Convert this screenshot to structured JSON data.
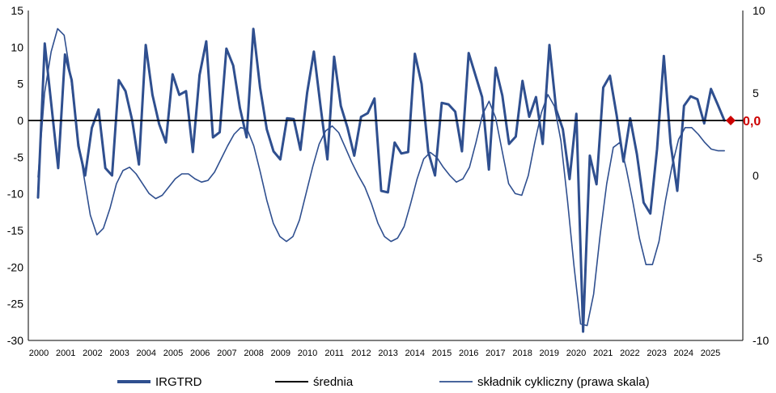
{
  "chart_data": {
    "type": "line",
    "x_labels": [
      "2000",
      "2001",
      "2002",
      "2003",
      "2004",
      "2005",
      "2006",
      "2007",
      "2008",
      "2009",
      "2010",
      "2011",
      "2012",
      "2013",
      "2014",
      "2015",
      "2016",
      "2017",
      "2018",
      "2019",
      "2020",
      "2021",
      "2022",
      "2023",
      "2024",
      "2025"
    ],
    "left_axis": {
      "ylim": [
        -30,
        15
      ],
      "ticks": [
        -30,
        -25,
        -20,
        -15,
        -10,
        -5,
        0,
        5,
        10,
        15
      ]
    },
    "right_axis": {
      "ylim": [
        -10,
        10
      ],
      "ticks": [
        -10,
        -5,
        0,
        5,
        10
      ]
    },
    "grid": false,
    "legend_position": "bottom",
    "series": [
      {
        "name": "IRGTRD",
        "axis": "left",
        "color": "#2F4F8F",
        "style": "thick",
        "values": [
          -10.5,
          10.5,
          2.0,
          -6.5,
          9.0,
          5.5,
          -3.5,
          -7.5,
          -1.0,
          1.5,
          -6.5,
          -7.5,
          5.5,
          4.0,
          0.0,
          -6.0,
          10.3,
          3.5,
          -0.5,
          -3.0,
          6.3,
          3.5,
          4.0,
          -4.3,
          6.2,
          10.8,
          -2.3,
          -1.6,
          9.8,
          7.5,
          1.7,
          -2.3,
          12.5,
          4.5,
          -1.2,
          -4.2,
          -5.3,
          0.3,
          0.2,
          -4.0,
          3.8,
          9.4,
          1.8,
          -5.3,
          8.7,
          2.0,
          -1.0,
          -4.8,
          0.5,
          1.0,
          3.0,
          -9.6,
          -9.8,
          -3.0,
          -4.5,
          -4.3,
          9.1,
          5.0,
          -4.3,
          -7.5,
          2.4,
          2.2,
          1.2,
          -4.2,
          9.2,
          6.2,
          3.2,
          -6.7,
          7.2,
          3.4,
          -3.2,
          -2.2,
          5.4,
          0.5,
          3.2,
          -3.2,
          10.3,
          1.5,
          -1.2,
          -8.0,
          0.9,
          -28.8,
          -4.8,
          -8.7,
          4.5,
          6.1,
          0.7,
          -5.6,
          0.3,
          -4.6,
          -11.2,
          -12.7,
          -3.9,
          8.8,
          -3.1,
          -9.6,
          2.0,
          3.3,
          2.9,
          -0.4,
          4.3,
          2.2,
          0.0
        ]
      },
      {
        "name": "średnia",
        "axis": "left",
        "color": "#000000",
        "style": "constant",
        "values": [
          0.0
        ]
      },
      {
        "name": "składnik cykliczny (prawa skala)",
        "axis": "right",
        "color": "#2F4F8F",
        "style": "thin",
        "values": [
          -0.1,
          5.0,
          7.5,
          8.9,
          8.5,
          6.0,
          2.5,
          0.0,
          -2.4,
          -3.6,
          -3.2,
          -2.0,
          -0.5,
          0.3,
          0.5,
          0.1,
          -0.5,
          -1.1,
          -1.4,
          -1.2,
          -0.7,
          -0.2,
          0.1,
          0.1,
          -0.2,
          -0.4,
          -0.3,
          0.2,
          1.0,
          1.8,
          2.5,
          2.9,
          2.8,
          1.8,
          0.2,
          -1.5,
          -2.9,
          -3.7,
          -4.0,
          -3.7,
          -2.7,
          -1.1,
          0.5,
          1.9,
          2.7,
          3.0,
          2.6,
          1.7,
          0.8,
          0.0,
          -0.7,
          -1.7,
          -2.9,
          -3.7,
          -4.0,
          -3.8,
          -3.1,
          -1.7,
          -0.2,
          1.0,
          1.4,
          1.1,
          0.5,
          0.0,
          -0.4,
          -0.2,
          0.5,
          2.0,
          3.7,
          4.5,
          3.5,
          1.5,
          -0.5,
          -1.1,
          -1.2,
          0.0,
          2.0,
          3.8,
          4.9,
          4.2,
          2.1,
          -1.5,
          -5.5,
          -9.0,
          -9.1,
          -7.2,
          -3.6,
          -0.5,
          1.7,
          2.0,
          0.4,
          -1.6,
          -3.8,
          -5.4,
          -5.4,
          -4.0,
          -1.5,
          0.6,
          2.2,
          2.9,
          2.9,
          2.5,
          2.0,
          1.6,
          1.5,
          1.5
        ]
      }
    ],
    "annotation": {
      "text": "0,0",
      "color": "#CC0000",
      "y": 0.0
    }
  }
}
